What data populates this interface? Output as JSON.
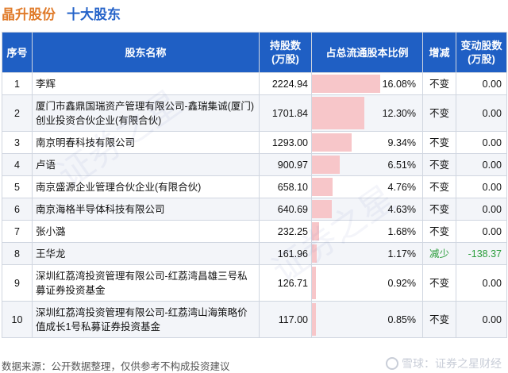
{
  "title": {
    "company": "晶升股份",
    "subtitle": "十大股东"
  },
  "headers": {
    "idx": "序号",
    "name": "股东名称",
    "shares_l1": "持股数",
    "shares_l2": "(万股)",
    "ratio": "占总流通股本比例",
    "change": "增减",
    "delta_l1": "变动股数",
    "delta_l2": "(万股)"
  },
  "rows": [
    {
      "idx": "1",
      "name": "李辉",
      "shares": "2224.94",
      "ratio": "16.08%",
      "ratio_value": 16.08,
      "change": "不变",
      "delta": "0.00"
    },
    {
      "idx": "2",
      "name": "厦门市鑫鼎国瑞资产管理有限公司-鑫瑞集诚(厦门)创业投资合伙企业(有限合伙)",
      "shares": "1701.84",
      "ratio": "12.30%",
      "ratio_value": 12.3,
      "change": "不变",
      "delta": "0.00"
    },
    {
      "idx": "3",
      "name": "南京明春科技有限公司",
      "shares": "1293.00",
      "ratio": "9.34%",
      "ratio_value": 9.34,
      "change": "不变",
      "delta": "0.00"
    },
    {
      "idx": "4",
      "name": "卢语",
      "shares": "900.97",
      "ratio": "6.51%",
      "ratio_value": 6.51,
      "change": "不变",
      "delta": "0.00"
    },
    {
      "idx": "5",
      "name": "南京盛源企业管理合伙企业(有限合伙)",
      "shares": "658.10",
      "ratio": "4.76%",
      "ratio_value": 4.76,
      "change": "不变",
      "delta": "0.00"
    },
    {
      "idx": "6",
      "name": "南京海格半导体科技有限公司",
      "shares": "640.69",
      "ratio": "4.63%",
      "ratio_value": 4.63,
      "change": "不变",
      "delta": "0.00"
    },
    {
      "idx": "7",
      "name": "张小潞",
      "shares": "232.25",
      "ratio": "1.68%",
      "ratio_value": 1.68,
      "change": "不变",
      "delta": "0.00"
    },
    {
      "idx": "8",
      "name": "王华龙",
      "shares": "161.96",
      "ratio": "1.17%",
      "ratio_value": 1.17,
      "change": "减少",
      "delta": "-138.37"
    },
    {
      "idx": "9",
      "name": "深圳红荔湾投资管理有限公司-红荔湾昌雄三号私募证券投资基金",
      "shares": "126.71",
      "ratio": "0.92%",
      "ratio_value": 0.92,
      "change": "不变",
      "delta": "0.00"
    },
    {
      "idx": "10",
      "name": "深圳红荔湾投资管理有限公司-红荔湾山海策略价值成长1号私募证券投资基金",
      "shares": "117.00",
      "ratio": "0.85%",
      "ratio_value": 0.85,
      "change": "不变",
      "delta": "0.00"
    }
  ],
  "ratio_scale_max": 16.08,
  "footer": {
    "source": "数据来源：公开数据整理，仅供参考不构成投资建议",
    "brand": "雪球：证券之星财经"
  }
}
